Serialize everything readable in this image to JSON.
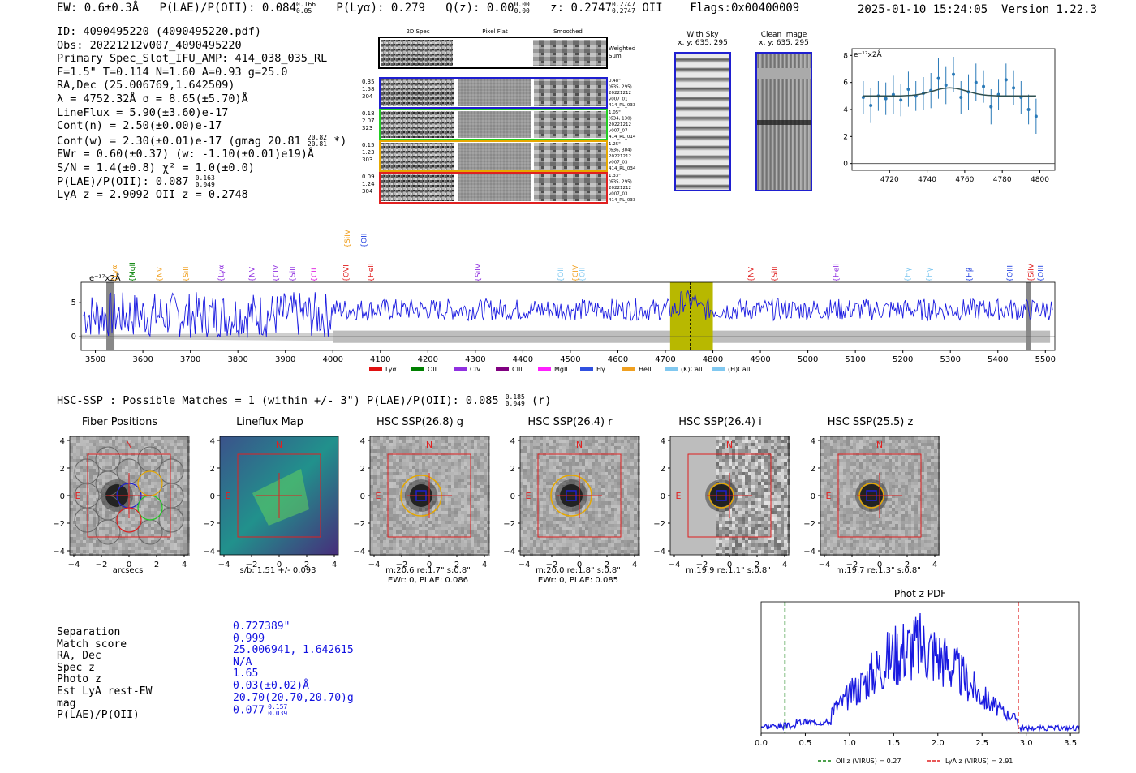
{
  "header": {
    "ew": "EW: 0.6±0.3Å",
    "plae": "P(LAE)/P(OII): 0.084",
    "plae_hi": "0.166",
    "plae_lo": "0.05",
    "plya": "P(Lyα): 0.279",
    "qz": "Q(z): 0.00",
    "qz_hi": "0.00",
    "qz_lo": "0.00",
    "z": "z: 0.2747",
    "z_hi": "0.2747",
    "z_lo": "0.2747",
    "z_line": "OII",
    "flags": "Flags:0x00400009",
    "datetime": "2025-01-10 15:24:05",
    "version": "Version 1.22.3"
  },
  "info": {
    "lines": [
      "ID: 4090495220 (4090495220.pdf)",
      "Obs: 20221212v007_4090495220",
      "Primary Spec_Slot_IFU_AMP: 414_038_035_RL",
      "F=1.5\"  T=0.114  N=1.60  A=0.93  g=25.0",
      "RA,Dec (25.006769,1.642509)",
      "λ = 4752.32Å  σ = 8.65(±5.70)Å",
      "LineFlux = 5.90(±3.60)e-17",
      "Cont(n) = 2.50(±0.00)e-17"
    ],
    "contw": "Cont(w) = 2.30(±0.01)e-17 (gmag 20.81",
    "contw_hi": "20.82",
    "contw_lo": "20.81",
    "contw_end": "*)",
    "ewr": "EWr = 0.60(±0.37) (w: -1.10(±0.01)e19)Å",
    "sn": "S/N = 1.4(±0.8)  χ² = 1.0(±0.0)",
    "plae2": "P(LAE)/P(OII): 0.087",
    "plae2_hi": "0.163",
    "plae2_lo": "0.049",
    "lya": "LyA z = 2.9092  OII z = 0.2748"
  },
  "cutouts": {
    "col_labels": [
      "2D Spec",
      "Pixel Flat",
      "Smoothed"
    ],
    "weighted_label": "Weighted Sum",
    "rows": [
      {
        "vals": [
          "0.35",
          "1.58",
          "304"
        ],
        "meta": [
          "0.48\"",
          "(635, 295)",
          "20221212",
          "v007_01",
          "414_RL_033"
        ],
        "color": "#1f1fd0"
      },
      {
        "vals": [
          "0.18",
          "2.07",
          "323"
        ],
        "meta": [
          "1.05\"",
          "(634, 130)",
          "20221212",
          "v007_07",
          "414_RL_014"
        ],
        "color": "#22cc22"
      },
      {
        "vals": [
          "0.15",
          "1.23",
          "303"
        ],
        "meta": [
          "1.25\"",
          "(636, 304)",
          "20221212",
          "v007_03",
          "414_RL_034"
        ],
        "color": "#e6a800"
      },
      {
        "vals": [
          "0.09",
          "1.24",
          "304"
        ],
        "meta": [
          "1.33\"",
          "(635, 295)",
          "20221212",
          "v007_03",
          "414_RL_033"
        ],
        "color": "#e02020"
      }
    ],
    "with_sky": "With Sky",
    "with_sky_xy": "x, y: 635, 295",
    "clean": "Clean Image",
    "clean_xy": "x, y: 635, 295"
  },
  "zoom_chart": {
    "ylabel": "e⁻¹⁷x2Å",
    "xticks": [
      "4720",
      "4740",
      "4760",
      "4780",
      "4800"
    ],
    "yticks": [
      "0",
      "2",
      "4",
      "6",
      "8"
    ]
  },
  "chart_data": [
    {
      "type": "scatter",
      "x": [
        4706,
        4710,
        4714,
        4718,
        4722,
        4726,
        4730,
        4734,
        4738,
        4742,
        4746,
        4750,
        4754,
        4758,
        4762,
        4766,
        4770,
        4774,
        4778,
        4782,
        4786,
        4790,
        4794,
        4798
      ],
      "y": [
        4.9,
        4.3,
        5.0,
        4.8,
        5.1,
        4.7,
        5.5,
        5.0,
        5.2,
        5.4,
        6.3,
        5.8,
        6.6,
        4.9,
        5.3,
        6.0,
        5.7,
        4.2,
        5.1,
        6.2,
        5.6,
        4.9,
        4.0,
        3.5
      ],
      "err": [
        1.2,
        1.3,
        1.1,
        1.2,
        1.4,
        1.2,
        1.3,
        1.1,
        1.2,
        1.3,
        1.5,
        1.4,
        1.3,
        1.2,
        1.3,
        1.4,
        1.2,
        1.3,
        1.1,
        1.2,
        1.3,
        1.2,
        1.1,
        1.3
      ],
      "xlim": [
        4700,
        4808
      ],
      "ylim": [
        -0.5,
        8.5
      ]
    },
    {
      "type": "line",
      "ylabel": "e⁻¹⁷x2Å",
      "xlim": [
        3470,
        5520
      ],
      "ylim": [
        -2,
        8
      ],
      "xticks": [
        3500,
        3600,
        3700,
        3800,
        3900,
        4000,
        4100,
        4200,
        4300,
        4400,
        4500,
        4600,
        4700,
        4800,
        4900,
        5000,
        5100,
        5200,
        5300,
        5400,
        5500
      ],
      "yticks": [
        0,
        5
      ],
      "highlight": [
        4710,
        4800
      ],
      "marker": 4752,
      "line_markers": [
        {
          "label": "Lyα",
          "x": 3540,
          "color": "#f0a020",
          "row": 1
        },
        {
          "label": "MgII",
          "x": 3578,
          "color": "#008000",
          "row": 1
        },
        {
          "label": "NV",
          "x": 3635,
          "color": "#f0a020",
          "row": 1
        },
        {
          "label": "SiII",
          "x": 3690,
          "color": "#f0a020",
          "row": 1
        },
        {
          "label": "Lyα",
          "x": 3765,
          "color": "#9030e0",
          "row": 1
        },
        {
          "label": "NV",
          "x": 3830,
          "color": "#9030e0",
          "row": 1
        },
        {
          "label": "CIV",
          "x": 3880,
          "color": "#9030e0",
          "row": 1
        },
        {
          "label": "SiII",
          "x": 3915,
          "color": "#9030e0",
          "row": 1
        },
        {
          "label": "CII",
          "x": 3960,
          "color": "#e020e0",
          "row": 1
        },
        {
          "label": "OVI",
          "x": 4028,
          "color": "#e02020",
          "row": 1
        },
        {
          "label": "HeII",
          "x": 4080,
          "color": "#e02020",
          "row": 1
        },
        {
          "label": "SiIV",
          "x": 4030,
          "color": "#f0a020",
          "row": 0
        },
        {
          "label": "OII",
          "x": 4065,
          "color": "#2040e0",
          "row": 0
        },
        {
          "label": "SiIV",
          "x": 4305,
          "color": "#9030e0",
          "row": 1
        },
        {
          "label": "OII",
          "x": 4480,
          "color": "#80c8f0",
          "row": 1
        },
        {
          "label": "CIV",
          "x": 4510,
          "color": "#f0a020",
          "row": 1
        },
        {
          "label": "OII",
          "x": 4525,
          "color": "#80c8f0",
          "row": 1
        },
        {
          "label": "NV",
          "x": 4880,
          "color": "#e02020",
          "row": 1
        },
        {
          "label": "SiII",
          "x": 4930,
          "color": "#e02020",
          "row": 1
        },
        {
          "label": "HeII",
          "x": 5060,
          "color": "#9030e0",
          "row": 1
        },
        {
          "label": "Hγ",
          "x": 5210,
          "color": "#80c8f0",
          "row": 1
        },
        {
          "label": "Hγ",
          "x": 5255,
          "color": "#80c8f0",
          "row": 1
        },
        {
          "label": "Hβ",
          "x": 5340,
          "color": "#2040e0",
          "row": 1
        },
        {
          "label": "OIII",
          "x": 5425,
          "color": "#2040e0",
          "row": 1
        },
        {
          "label": "SiIV",
          "x": 5470,
          "color": "#e02020",
          "row": 1
        },
        {
          "label": "OIII",
          "x": 5490,
          "color": "#2040e0",
          "row": 1
        }
      ],
      "legend": [
        {
          "label": "Lyα",
          "color": "#e01010"
        },
        {
          "label": "OII",
          "color": "#008000"
        },
        {
          "label": "CIV",
          "color": "#9030e0"
        },
        {
          "label": "CIII",
          "color": "#800080"
        },
        {
          "label": "MgII",
          "color": "#ff20ff"
        },
        {
          "label": "Hγ",
          "color": "#3050e0"
        },
        {
          "label": "HeII",
          "color": "#f0a020"
        },
        {
          "label": "(K)CaII",
          "color": "#80c8f0"
        },
        {
          "label": "(H)CaII",
          "color": "#80c8f0"
        }
      ]
    },
    {
      "type": "line",
      "title": "Phot z PDF",
      "xlim": [
        0.0,
        3.6
      ],
      "ylim": [
        0,
        1
      ],
      "xticks": [
        "0.0",
        "0.5",
        "1.0",
        "1.5",
        "2.0",
        "2.5",
        "3.0",
        "3.5"
      ],
      "oii_z": 0.27,
      "lya_z": 2.91,
      "legend": [
        {
          "label": "OII z (VIRUS) = 0.27",
          "color": "#108010"
        },
        {
          "label": "LyA z (VIRUS) = 2.91",
          "color": "#e02020"
        }
      ]
    }
  ],
  "hsc": {
    "title": "HSC-SSP : Possible Matches = 1 (within +/- 3\")  P(LAE)/P(OII): 0.085",
    "title_hi": "0.185",
    "title_lo": "0.049",
    "title_end": "(r)",
    "panels": [
      {
        "title": "Fiber Positions",
        "caption1": "arcsecs",
        "caption2": ""
      },
      {
        "title": "Lineflux Map",
        "caption1": "s/b: 1.51 +/- 0.093",
        "caption2": ""
      },
      {
        "title": "HSC SSP(26.8) g",
        "caption1": "m:20.6  re:1.7\"  s:0.8\"",
        "caption2": "EWr: 0, PLAE: 0.086"
      },
      {
        "title": "HSC SSP(26.4) r",
        "caption1": "m:20.0  re:1.8\"  s:0.8\"",
        "caption2": "EWr: 0, PLAE: 0.085"
      },
      {
        "title": "HSC SSP(26.4) i",
        "caption1": "m:19.9  re:1.1\"  s:0.8\"",
        "caption2": ""
      },
      {
        "title": "HSC SSP(25.5) z",
        "caption1": "m:19.7  re:1.3\"  s:0.8\"",
        "caption2": ""
      }
    ],
    "north": "N",
    "east": "E",
    "ticks": [
      "4",
      "2",
      "0",
      "−2",
      "−4"
    ],
    "xticks": [
      "−4",
      "−2",
      "0",
      "2",
      "4"
    ]
  },
  "match": {
    "labels": [
      "Separation",
      "Match score",
      "RA, Dec",
      "Spec z",
      "Photo z",
      "Est LyA rest-EW",
      "mag",
      "P(LAE)/P(OII)"
    ],
    "values": [
      "0.727389\"",
      "0.999",
      "25.006941, 1.642615",
      "N/A",
      "1.65",
      "0.03(±0.02)Å",
      "20.70(20.70,20.70)g",
      "0.077"
    ],
    "plae_hi": "0.157",
    "plae_lo": "0.039"
  }
}
